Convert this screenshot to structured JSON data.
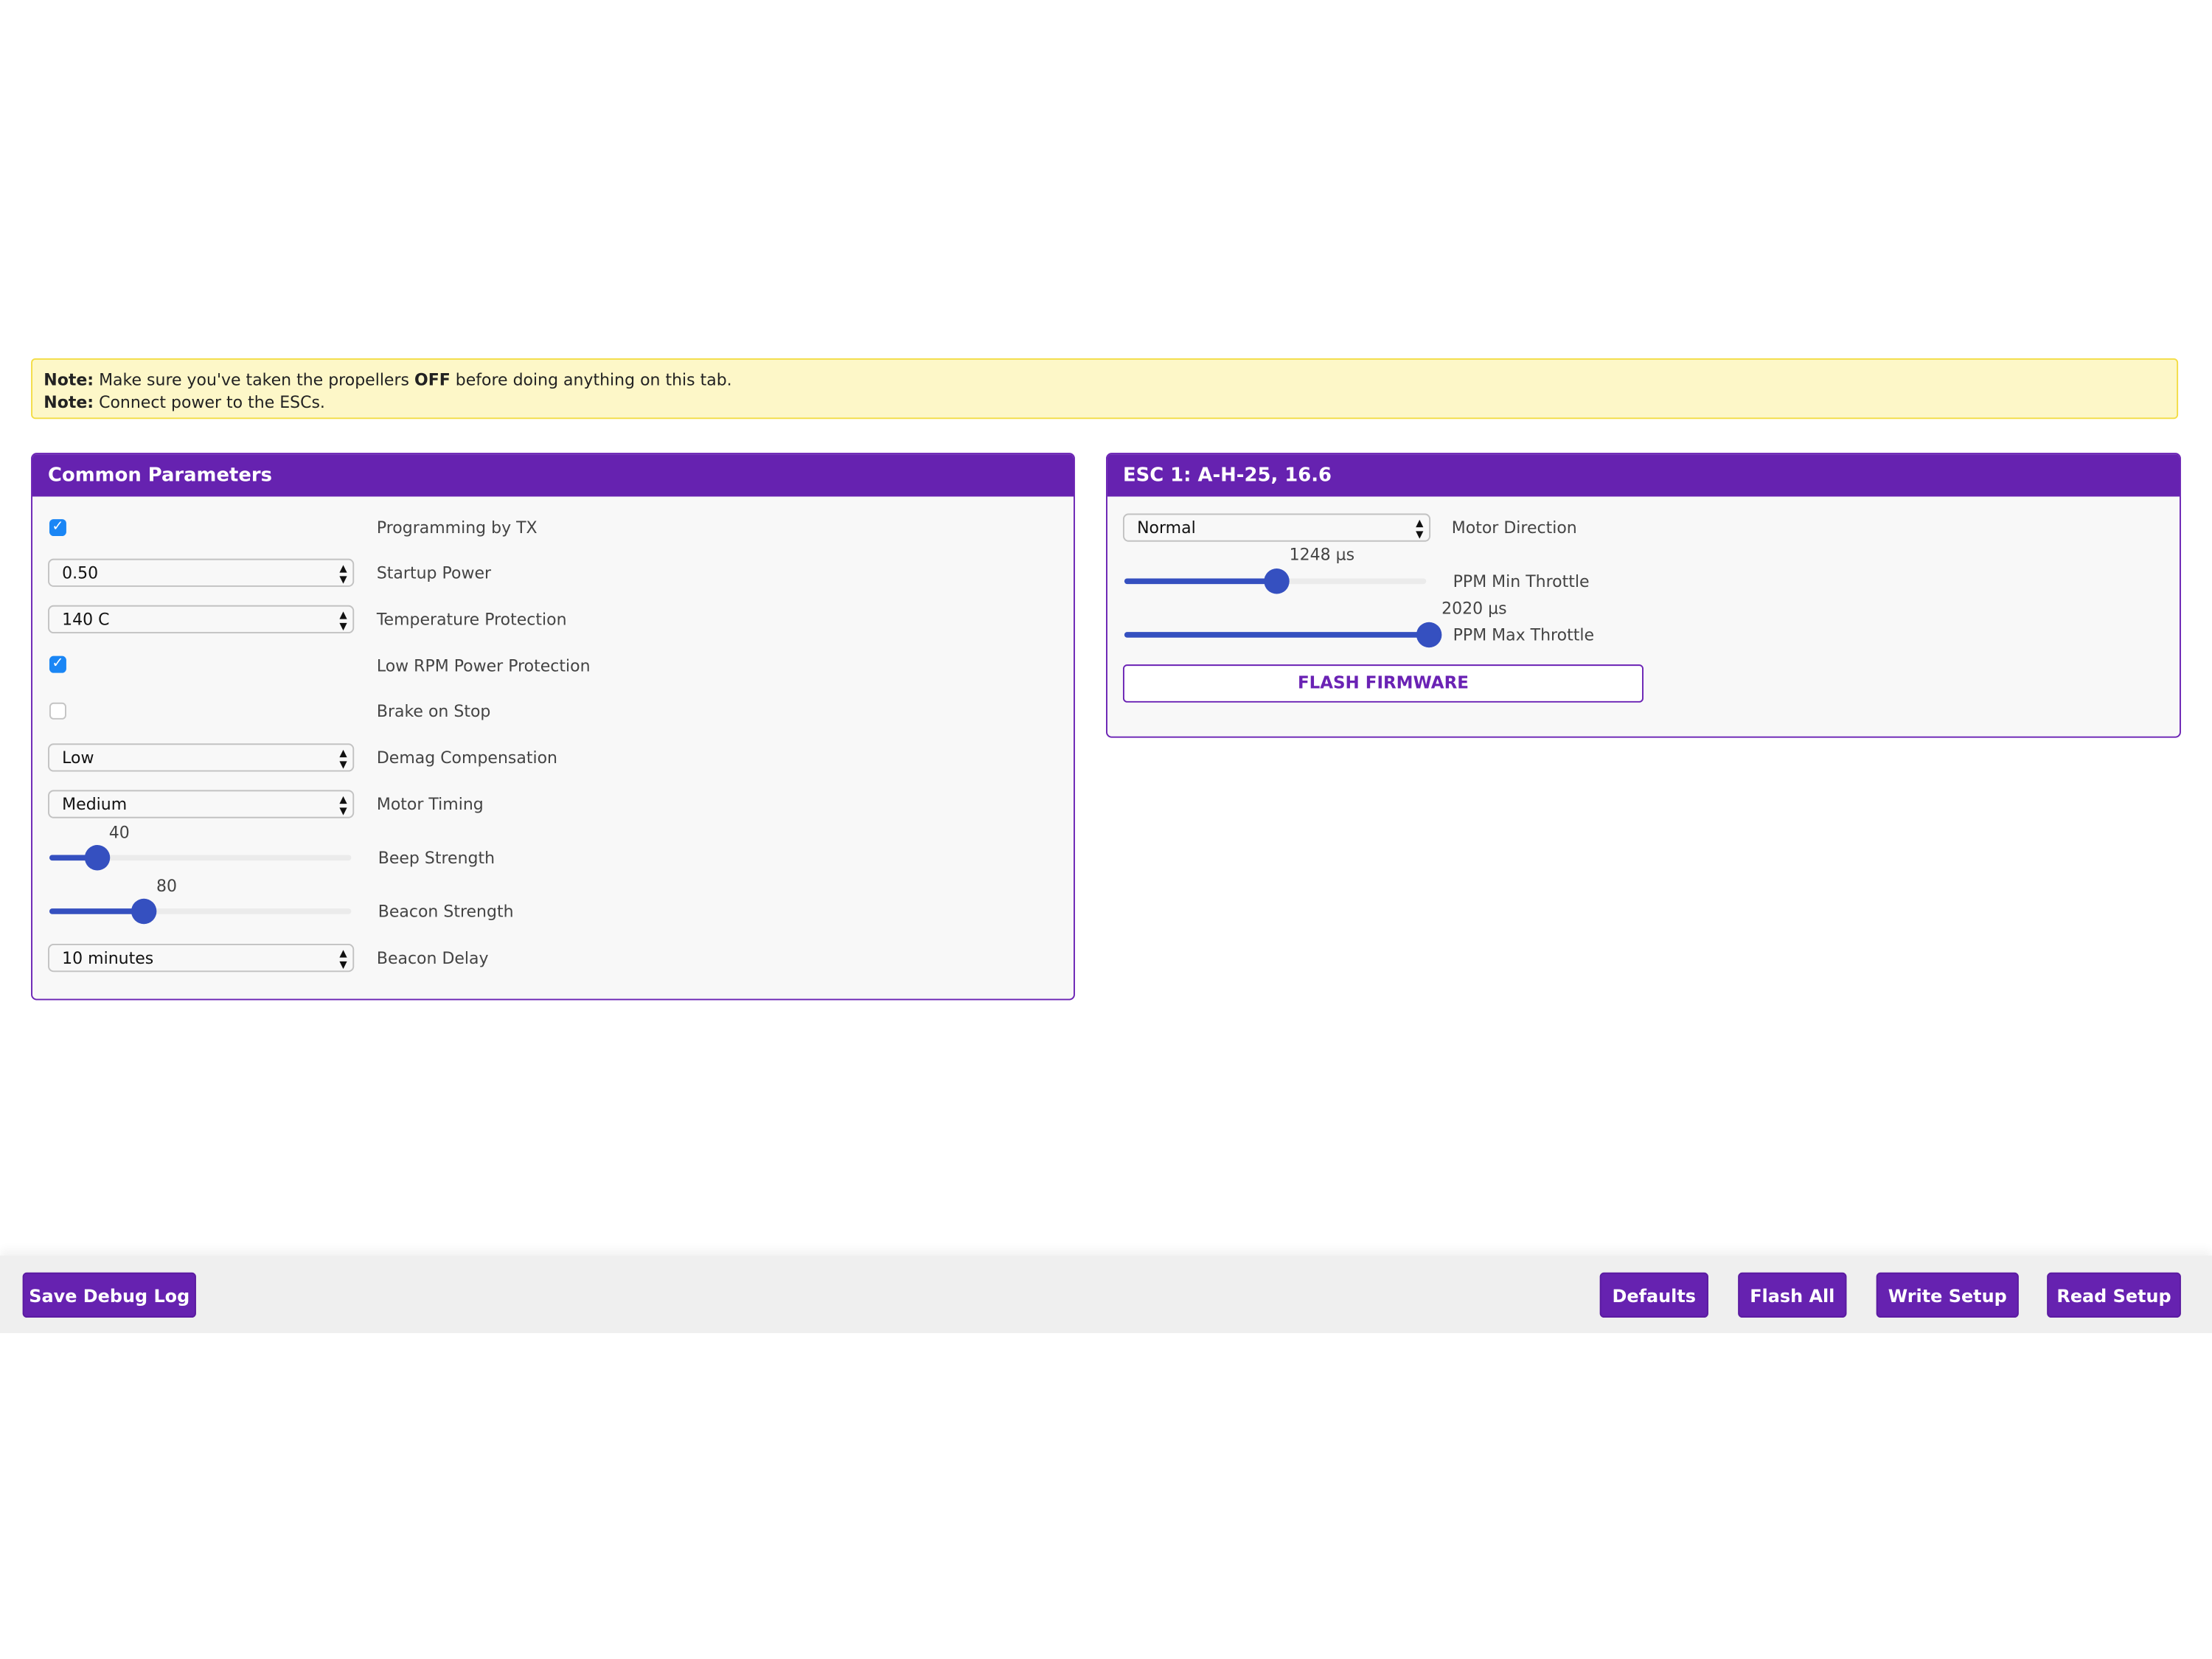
{
  "notes": [
    {
      "prefix": "Note:",
      "text1": " Make sure you've taken the propellers ",
      "bold": "OFF",
      "text2": " before doing anything on this tab."
    },
    {
      "prefix": "Note:",
      "text1": " Connect power to the ESCs."
    }
  ],
  "common": {
    "title": "Common Parameters",
    "programming_by_tx": {
      "label": "Programming by TX",
      "checked": true
    },
    "startup_power": {
      "label": "Startup Power",
      "value": "0.50"
    },
    "temperature_protection": {
      "label": "Temperature Protection",
      "value": "140 C"
    },
    "low_rpm_power_protection": {
      "label": "Low RPM Power Protection",
      "checked": true
    },
    "brake_on_stop": {
      "label": "Brake on Stop",
      "checked": false
    },
    "demag_compensation": {
      "label": "Demag Compensation",
      "value": "Low"
    },
    "motor_timing": {
      "label": "Motor Timing",
      "value": "Medium"
    },
    "beep_strength": {
      "label": "Beep Strength",
      "value": "40",
      "min": 0,
      "max": 255
    },
    "beacon_strength": {
      "label": "Beacon Strength",
      "value": "80",
      "min": 0,
      "max": 255
    },
    "beacon_delay": {
      "label": "Beacon Delay",
      "value": "10 minutes"
    }
  },
  "esc1": {
    "title": "ESC 1: A-H-25, 16.6",
    "motor_direction": {
      "label": "Motor Direction",
      "value": "Normal"
    },
    "ppm_min_throttle": {
      "label": "PPM Min Throttle",
      "value": "1248 µs",
      "level": 0.505
    },
    "ppm_max_throttle": {
      "label": "PPM Max Throttle",
      "value": "2020 µs",
      "level": 1.0
    },
    "flash_label": "FLASH FIRMWARE"
  },
  "footer": {
    "save_debug_log": "Save Debug Log",
    "defaults": "Defaults",
    "flash_all": "Flash All",
    "write_setup": "Write Setup",
    "read_setup": "Read Setup"
  },
  "colors": {
    "accent": "#6622b0",
    "slider": "#3550c0",
    "checkbox": "#1a86f5",
    "note_bg": "#fdf7c8"
  },
  "icons": {
    "checkbox_checked": "checkmark-icon",
    "select": "updown-arrows-icon"
  }
}
